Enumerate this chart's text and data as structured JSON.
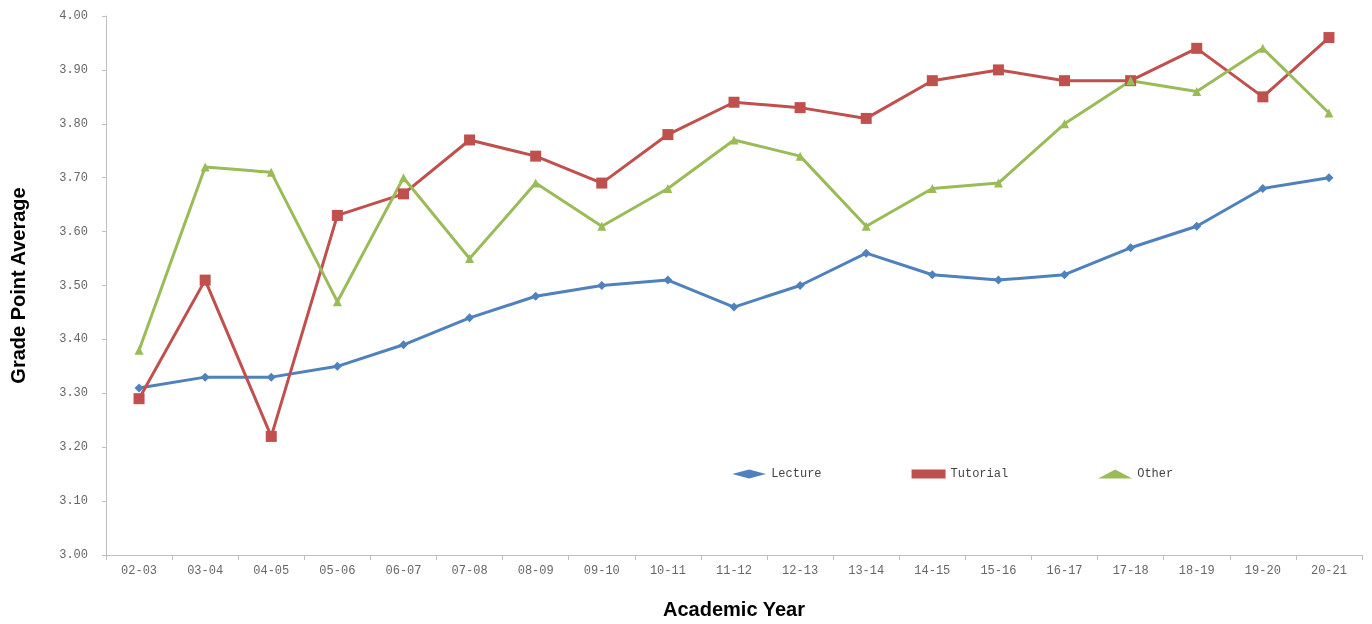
{
  "chart_data": {
    "type": "line",
    "xlabel": "Academic Year",
    "ylabel": "Grade Point Average",
    "categories": [
      "02-03",
      "03-04",
      "04-05",
      "05-06",
      "06-07",
      "07-08",
      "08-09",
      "09-10",
      "10-11",
      "11-12",
      "12-13",
      "13-14",
      "14-15",
      "15-16",
      "16-17",
      "17-18",
      "18-19",
      "19-20",
      "20-21"
    ],
    "series": [
      {
        "name": "Lecture",
        "color": "#4f81bd",
        "marker": "diamond",
        "values": [
          3.31,
          3.33,
          3.33,
          3.35,
          3.39,
          3.44,
          3.48,
          3.5,
          3.51,
          3.46,
          3.5,
          3.56,
          3.52,
          3.51,
          3.52,
          3.57,
          3.61,
          3.68,
          3.7
        ]
      },
      {
        "name": "Tutorial",
        "color": "#c0504d",
        "marker": "square",
        "values": [
          3.29,
          3.51,
          3.22,
          3.63,
          3.67,
          3.77,
          3.74,
          3.69,
          3.78,
          3.84,
          3.83,
          3.81,
          3.88,
          3.9,
          3.88,
          3.88,
          3.94,
          3.85,
          3.96
        ]
      },
      {
        "name": "Other",
        "color": "#9bbb59",
        "marker": "triangle",
        "values": [
          3.38,
          3.72,
          3.71,
          3.47,
          3.7,
          3.55,
          3.69,
          3.61,
          3.68,
          3.77,
          3.74,
          3.61,
          3.68,
          3.69,
          3.8,
          3.88,
          3.86,
          3.94,
          3.82
        ]
      }
    ],
    "ylim": [
      3.0,
      4.0
    ],
    "yticks": [
      {
        "value": 3.0,
        "label": "3.00"
      },
      {
        "value": 3.1,
        "label": "3.10"
      },
      {
        "value": 3.2,
        "label": "3.20"
      },
      {
        "value": 3.3,
        "label": "3.30"
      },
      {
        "value": 3.4,
        "label": "3.40"
      },
      {
        "value": 3.5,
        "label": "3.50"
      },
      {
        "value": 3.6,
        "label": "3.60"
      },
      {
        "value": 3.7,
        "label": "3.70"
      },
      {
        "value": 3.8,
        "label": "3.80"
      },
      {
        "value": 3.9,
        "label": "3.90"
      },
      {
        "value": 4.0,
        "label": "4.00"
      }
    ],
    "grid": false,
    "legend": "bottom right",
    "line_style": "solid"
  }
}
